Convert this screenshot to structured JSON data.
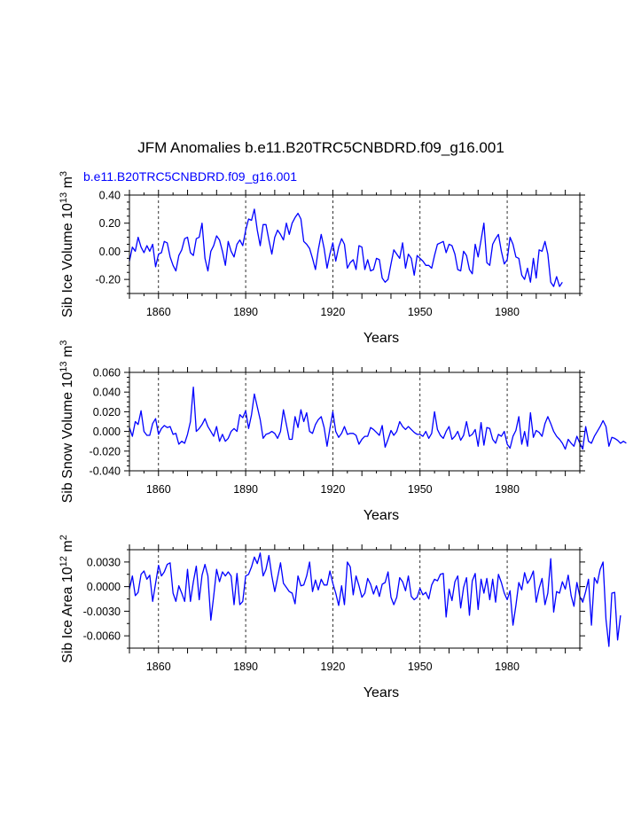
{
  "page": {
    "title": "JFM Anomalies b.e11.B20TRC5CNBDRD.f09_g16.001",
    "subtitle": "b.e11.B20TRC5CNBDRD.f09_g16.001"
  },
  "colors": {
    "series": "#0000ff",
    "axis": "#000000",
    "background": "#ffffff"
  },
  "chart_data": [
    {
      "type": "line",
      "title": "",
      "ylabel": "Sib Ice Volume 10^13 m^3",
      "ylabel_parts": {
        "base": "Sib Ice Volume 10",
        "sup1": "13",
        "mid": " m",
        "sup2": "3"
      },
      "xlabel": "Years",
      "x_range": [
        1850,
        2005
      ],
      "ylim": [
        -0.3,
        0.4
      ],
      "yticks": [
        -0.2,
        0.0,
        0.2,
        0.4
      ],
      "ytick_labels": [
        "-0.20",
        "0.00",
        "0.20",
        "0.40"
      ],
      "yminor_step": 0.05,
      "xticks": [
        1860,
        1890,
        1920,
        1950,
        1980
      ],
      "xtick_labels": [
        "1860",
        "1890",
        "1920",
        "1950",
        "1980"
      ],
      "xgrid": [
        1860,
        1890,
        1920,
        1950,
        1980
      ],
      "series": [
        {
          "name": "Sib Ice Volume",
          "x_start": 1850,
          "values": [
            -0.07,
            0.03,
            0.0,
            0.1,
            0.03,
            -0.01,
            0.04,
            0.0,
            0.05,
            -0.11,
            -0.02,
            -0.01,
            0.07,
            0.06,
            -0.04,
            -0.1,
            -0.14,
            -0.03,
            0.01,
            0.09,
            0.1,
            -0.01,
            -0.03,
            0.09,
            0.1,
            0.2,
            -0.05,
            -0.14,
            0.0,
            0.04,
            0.11,
            0.08,
            0.0,
            -0.1,
            0.07,
            0.0,
            -0.04,
            0.05,
            0.08,
            0.04,
            0.15,
            0.23,
            0.22,
            0.3,
            0.15,
            0.04,
            0.19,
            0.19,
            0.08,
            -0.02,
            0.1,
            0.15,
            0.12,
            0.08,
            0.2,
            0.12,
            0.2,
            0.24,
            0.27,
            0.23,
            0.07,
            0.05,
            0.02,
            -0.05,
            -0.13,
            0.01,
            0.12,
            0.02,
            -0.12,
            -0.02,
            0.06,
            -0.07,
            0.03,
            0.09,
            0.05,
            -0.12,
            -0.08,
            -0.06,
            -0.13,
            0.04,
            0.03,
            -0.13,
            -0.06,
            -0.14,
            -0.13,
            -0.05,
            -0.06,
            -0.19,
            -0.22,
            -0.2,
            -0.09,
            0.01,
            -0.02,
            -0.05,
            0.06,
            -0.12,
            -0.02,
            -0.05,
            -0.17,
            -0.03,
            -0.05,
            -0.07,
            -0.1,
            -0.1,
            -0.12,
            -0.03,
            0.05,
            0.06,
            0.07,
            -0.01,
            0.05,
            0.04,
            -0.02,
            -0.13,
            -0.14,
            0.0,
            -0.03,
            -0.13,
            -0.16,
            0.05,
            -0.04,
            0.08,
            0.2,
            -0.08,
            -0.1,
            0.05,
            0.09,
            0.12,
            0.0,
            -0.09,
            -0.06,
            0.1,
            0.05,
            -0.04,
            -0.05,
            -0.17,
            -0.2,
            -0.12,
            -0.22,
            -0.05,
            -0.19,
            0.01,
            0.0,
            0.07,
            -0.02,
            -0.22,
            -0.25,
            -0.18,
            -0.25,
            -0.22
          ]
        }
      ]
    },
    {
      "type": "line",
      "title": "",
      "ylabel": "Sib Snow Volume 10^13 m^3",
      "ylabel_parts": {
        "base": "Sib Snow Volume 10",
        "sup1": "13",
        "mid": " m",
        "sup2": "3"
      },
      "xlabel": "Years",
      "x_range": [
        1850,
        2005
      ],
      "ylim": [
        -0.04,
        0.06
      ],
      "yticks": [
        -0.04,
        -0.02,
        0.0,
        0.02,
        0.04,
        0.06
      ],
      "ytick_labels": [
        "-0.040",
        "-0.020",
        "0.000",
        "0.020",
        "0.040",
        "0.060"
      ],
      "yminor_step": 0.005,
      "xticks": [
        1860,
        1890,
        1920,
        1950,
        1980
      ],
      "xtick_labels": [
        "1860",
        "1890",
        "1920",
        "1950",
        "1980"
      ],
      "xgrid": [
        1860,
        1890,
        1920,
        1950,
        1980
      ],
      "series": [
        {
          "name": "Sib Snow Volume",
          "x_start": 1850,
          "values": [
            0.004,
            -0.005,
            0.01,
            0.007,
            0.021,
            0.0,
            -0.004,
            -0.004,
            0.008,
            0.013,
            -0.003,
            0.003,
            0.006,
            0.004,
            0.005,
            -0.003,
            -0.002,
            -0.013,
            -0.01,
            -0.012,
            -0.003,
            0.01,
            0.045,
            0.0,
            0.003,
            0.007,
            0.013,
            0.005,
            0.0,
            -0.005,
            0.005,
            -0.01,
            -0.003,
            -0.01,
            -0.007,
            0.0,
            0.003,
            0.0,
            0.017,
            0.014,
            0.021,
            0.003,
            0.017,
            0.038,
            0.025,
            0.012,
            -0.007,
            -0.003,
            -0.002,
            0.0,
            -0.002,
            -0.007,
            0.0,
            0.022,
            0.007,
            -0.008,
            -0.008,
            0.015,
            0.004,
            0.022,
            0.01,
            0.019,
            0.0,
            -0.002,
            0.007,
            0.012,
            0.015,
            0.004,
            -0.015,
            0.003,
            0.02,
            0.0,
            -0.006,
            -0.002,
            0.005,
            -0.003,
            -0.002,
            -0.002,
            -0.004,
            -0.013,
            -0.008,
            -0.005,
            -0.005,
            0.004,
            0.002,
            -0.001,
            -0.004,
            0.006,
            -0.016,
            -0.008,
            0.001,
            -0.004,
            0.0,
            0.01,
            0.005,
            0.002,
            0.005,
            0.002,
            -0.001,
            -0.003,
            -0.003,
            -0.005,
            0.0,
            -0.007,
            -0.002,
            0.02,
            0.002,
            -0.004,
            -0.007,
            0.0,
            0.005,
            -0.008,
            -0.005,
            0.0,
            -0.009,
            -0.004,
            0.01,
            -0.005,
            -0.003,
            0.002,
            -0.015,
            0.009,
            -0.014,
            0.004,
            0.003,
            -0.008,
            -0.012,
            -0.003,
            -0.005,
            0.0,
            -0.013,
            -0.017,
            -0.005,
            0.001,
            0.015,
            -0.013,
            0.0,
            -0.015,
            0.019,
            -0.006,
            0.001,
            -0.001,
            -0.005,
            0.008,
            0.015,
            0.008,
            0.0,
            -0.005,
            -0.008,
            -0.012,
            -0.018,
            -0.008,
            -0.012,
            -0.015,
            -0.005,
            -0.012,
            -0.018,
            0.005,
            -0.01,
            -0.012,
            -0.005,
            0.0,
            0.005,
            0.011,
            0.005,
            -0.015,
            -0.006,
            -0.007,
            -0.009,
            -0.012,
            -0.01,
            -0.012
          ]
        }
      ]
    },
    {
      "type": "line",
      "title": "",
      "ylabel": "Sib Ice Area 10^12 m^2",
      "ylabel_parts": {
        "base": "Sib Ice Area 10",
        "sup1": "12",
        "mid": " m",
        "sup2": "2"
      },
      "xlabel": "Years",
      "x_range": [
        1850,
        2005
      ],
      "ylim": [
        -0.0075,
        0.0045
      ],
      "yticks": [
        -0.006,
        -0.003,
        0.0,
        0.003
      ],
      "ytick_labels": [
        "-0.0060",
        "-0.0030",
        "0.0000",
        "0.0030"
      ],
      "yminor_step": 0.0015,
      "xticks": [
        1860,
        1890,
        1920,
        1950,
        1980
      ],
      "xtick_labels": [
        "1860",
        "1890",
        "1920",
        "1950",
        "1980"
      ],
      "xgrid": [
        1860,
        1890,
        1920,
        1950,
        1980
      ],
      "series": [
        {
          "name": "Sib Ice Area",
          "x_start": 1850,
          "values": [
            -0.0003,
            0.0013,
            -0.0011,
            -0.0007,
            0.0015,
            0.0019,
            0.0009,
            0.0014,
            -0.0018,
            0.0004,
            0.0026,
            0.0013,
            0.0018,
            0.0027,
            0.0029,
            -0.0008,
            -0.0018,
            0.0001,
            -0.0008,
            -0.0018,
            0.0021,
            -0.0018,
            0.0006,
            0.0025,
            -0.0016,
            0.0014,
            0.0027,
            0.0013,
            -0.0041,
            -0.0012,
            0.0021,
            0.0006,
            0.0018,
            0.0013,
            0.0018,
            0.0013,
            -0.0022,
            0.0016,
            -0.0022,
            -0.0018,
            0.0013,
            0.0015,
            0.0024,
            0.0036,
            0.0028,
            0.0041,
            0.0013,
            0.0021,
            0.0038,
            0.0013,
            -0.0006,
            0.0011,
            0.0029,
            0.0004,
            -0.0001,
            -0.0006,
            -0.0008,
            -0.0021,
            0.0013,
            0.0001,
            0.0002,
            0.0013,
            0.003,
            -0.0006,
            0.0008,
            -0.0004,
            0.0009,
            0.0002,
            0.0002,
            0.0019,
            0.0004,
            -0.0008,
            -0.0023,
            0.0001,
            -0.0022,
            0.003,
            0.0024,
            -0.001,
            0.0013,
            0.0001,
            -0.0013,
            -0.0008,
            0.001,
            0.0003,
            -0.0009,
            0.0001,
            -0.0012,
            0.0003,
            0.0005,
            0.0018,
            -0.0013,
            -0.0022,
            -0.0013,
            0.0011,
            0.0006,
            -0.0005,
            0.0013,
            -0.0012,
            -0.0016,
            -0.0013,
            -0.0002,
            -0.001,
            -0.0007,
            -0.0015,
            0.0002,
            0.0009,
            0.0007,
            0.0015,
            0.0016,
            -0.0037,
            -0.0003,
            -0.0017,
            0.0006,
            0.0013,
            -0.0026,
            -0.0001,
            0.0011,
            -0.0035,
            0.0007,
            0.0016,
            -0.0028,
            0.0009,
            -0.0008,
            0.001,
            -0.0016,
            0.0009,
            -0.0019,
            0.0015,
            0.0005,
            -0.0008,
            -0.0016,
            -0.0005,
            -0.0047,
            -0.0023,
            0.0005,
            -0.0004,
            0.0017,
            0.0004,
            0.001,
            0.0019,
            -0.0019,
            -0.0002,
            0.001,
            -0.0022,
            -0.0008,
            0.0034,
            -0.0031,
            -0.0006,
            -0.0008,
            0.0006,
            -0.0003,
            0.0014,
            -0.0011,
            -0.0024,
            0.0005,
            -0.0012,
            -0.0019,
            -0.0006,
            0.0009,
            -0.0047,
            0.0011,
            0.0004,
            0.0021,
            0.003,
            -0.004,
            -0.0073,
            -0.0008,
            -0.0007,
            -0.0065,
            -0.0035
          ]
        }
      ]
    }
  ]
}
